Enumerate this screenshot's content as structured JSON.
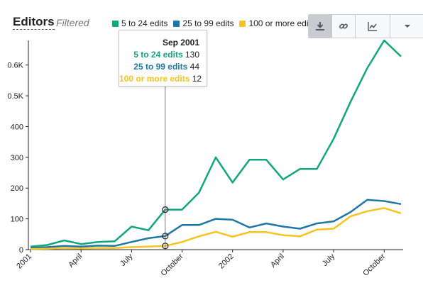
{
  "header": {
    "title": "Editors",
    "subtitle": "Filtered"
  },
  "toolbar": {
    "buttons": [
      {
        "icon": "download-icon",
        "active": true
      },
      {
        "icon": "link-icon",
        "active": false
      },
      {
        "icon": "line-chart-icon",
        "active": false
      },
      {
        "icon": "chevron-down-icon",
        "active": false
      }
    ]
  },
  "colors": {
    "green": "#12a67d",
    "blue": "#1f77a8",
    "yellow": "#f7c31e",
    "axis": "#222222"
  },
  "tooltip": {
    "date": "Sep 2001",
    "rows": [
      {
        "name": "5 to 24 edits",
        "value": "130"
      },
      {
        "name": "25 to 99 edits",
        "value": "44"
      },
      {
        "name": "100 or more edits",
        "value": "12"
      }
    ]
  },
  "chart_data": {
    "type": "line",
    "x": [
      "2001-01",
      "2001-02",
      "2001-03",
      "2001-04",
      "2001-05",
      "2001-06",
      "2001-07",
      "2001-08",
      "2001-09",
      "2001-10",
      "2001-11",
      "2001-12",
      "2002-01",
      "2002-02",
      "2002-03",
      "2002-04",
      "2002-05",
      "2002-06",
      "2002-07",
      "2002-08",
      "2002-09",
      "2002-10",
      "2002-11"
    ],
    "x_tick_labels": [
      "2001",
      "April",
      "July",
      "October",
      "2002",
      "April",
      "July",
      "October"
    ],
    "x_tick_positions": [
      "2001-01",
      "2001-04",
      "2001-07",
      "2001-10",
      "2002-01",
      "2002-04",
      "2002-07",
      "2002-10"
    ],
    "y_tick_labels": [
      "0",
      "100",
      "200",
      "300",
      "400",
      "0.5K",
      "0.6K"
    ],
    "y_tick_values": [
      0,
      100,
      200,
      300,
      400,
      500,
      600
    ],
    "ylim": [
      0,
      680
    ],
    "grid": false,
    "legend_position": "top",
    "series": [
      {
        "name": "5 to 24 edits",
        "color": "#12a67d",
        "values": [
          10,
          15,
          30,
          18,
          25,
          27,
          75,
          63,
          130,
          130,
          185,
          300,
          218,
          292,
          292,
          228,
          262,
          262,
          360,
          480,
          590,
          680,
          628
        ]
      },
      {
        "name": "25 to 99 edits",
        "color": "#1f77a8",
        "values": [
          5,
          8,
          12,
          10,
          13,
          12,
          25,
          37,
          44,
          80,
          80,
          100,
          97,
          72,
          85,
          75,
          68,
          85,
          92,
          122,
          162,
          158,
          148
        ]
      },
      {
        "name": "100 or more edits",
        "color": "#f7c31e",
        "values": [
          2,
          3,
          5,
          4,
          5,
          5,
          8,
          10,
          12,
          25,
          43,
          58,
          42,
          57,
          57,
          47,
          43,
          65,
          68,
          108,
          125,
          135,
          118
        ]
      }
    ],
    "highlight_index": 8
  }
}
